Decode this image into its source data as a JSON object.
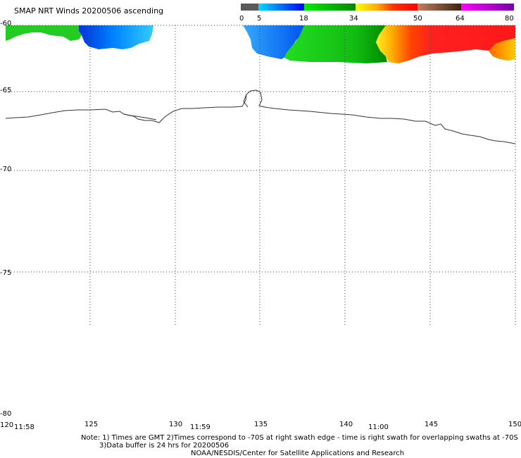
{
  "title": "SMAP NRT Winds 20200506 ascending",
  "colorbar": {
    "tick_labels": [
      "0",
      "5",
      "18",
      "34",
      "50",
      "64",
      "80"
    ],
    "colors": [
      "#5a5a5a",
      "#00aaff",
      "#00cc00",
      "#ffee00",
      "#ff0000",
      "#8b4513",
      "#ff00ff",
      "#7a00aa"
    ]
  },
  "map": {
    "lat_labels": [
      "-60",
      "-65",
      "-70",
      "-75",
      "-80"
    ],
    "lon_labels": [
      "120",
      "125",
      "130",
      "135",
      "140",
      "145",
      "150"
    ],
    "time_labels": [
      "11:58",
      "11:59",
      "11:00"
    ],
    "wind_colors": {
      "green": "#22cc22",
      "dark_green": "#00a000",
      "blue": "#0044ee",
      "light_blue": "#22aaff",
      "yellow": "#ffee22",
      "orange": "#ff8800",
      "red": "#ff2020"
    }
  },
  "notes": {
    "line1": "Note: 1) Times are GMT 2)Times correspond to -70S at right swath edge - time is right swath for overlapping swaths at -70S",
    "line2": "3)Data buffer is 24 hrs for 20200506",
    "line3": "NOAA/NESDIS/Center for Satellite Applications and Research"
  }
}
